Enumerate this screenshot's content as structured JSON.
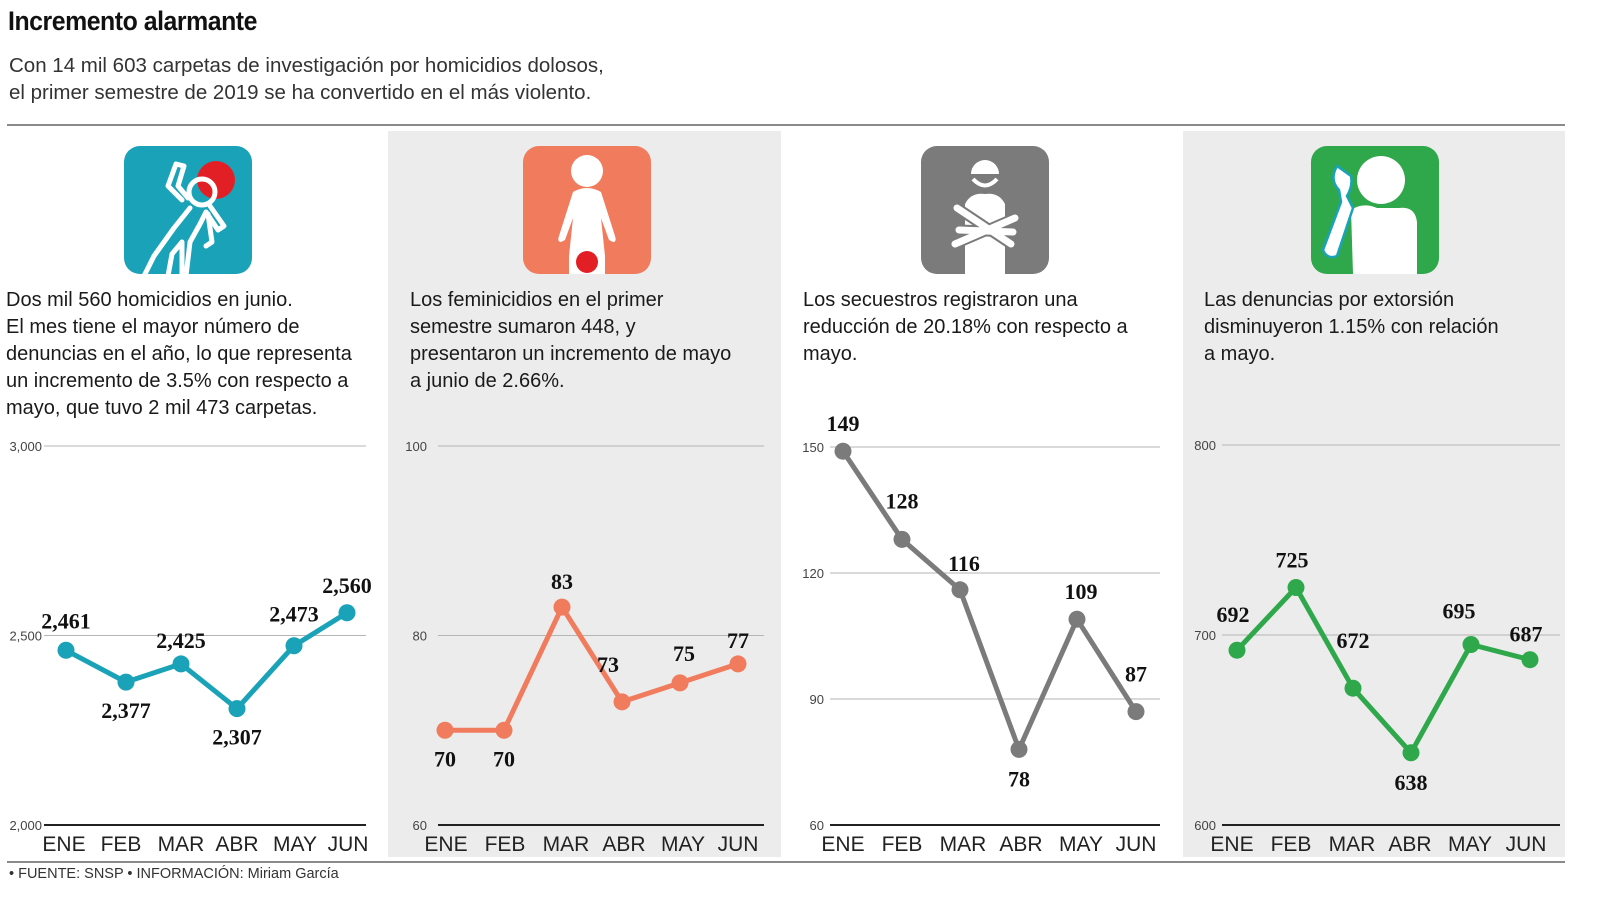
{
  "header": {
    "title": "Incremento alarmante",
    "subtitle_line1": "Con 14 mil 603 carpetas de investigación por homicidios dolosos,",
    "subtitle_line2": "el primer semestre de 2019 se ha convertido en el más violento."
  },
  "footer": "• FUENTE: SNSP • INFORMACIÓN: Miriam García",
  "panels": [
    {
      "icon": "homicide-chalk-outline-icon",
      "color": "#1aa3b8",
      "desc": [
        "Dos mil 560 homicidios en junio.",
        "El mes tiene el mayor número de",
        "denuncias en el año, lo que representa",
        "un incremento de 3.5% con respecto a",
        "mayo, que tuvo 2 mil 473 carpetas."
      ]
    },
    {
      "icon": "femicide-woman-icon",
      "color": "#f07b5d",
      "desc": [
        "Los feminicidios en el primer",
        "semestre sumaron 448, y",
        "presentaron un incremento de mayo",
        "a junio de 2.66%."
      ]
    },
    {
      "icon": "kidnapping-bound-person-icon",
      "color": "#7b7b7b",
      "desc": [
        "Los secuestros registraron una",
        "reducción de 20.18% con respecto a",
        "mayo."
      ]
    },
    {
      "icon": "extortion-phone-call-icon",
      "color": "#2ea84a",
      "desc": [
        "Las denuncias por extorsión",
        "disminuyeron 1.15% con relación",
        "a mayo."
      ]
    }
  ],
  "chart_data": [
    {
      "type": "line",
      "title": "Homicidios dolosos",
      "categories": [
        "ENE",
        "FEB",
        "MAR",
        "ABR",
        "MAY",
        "JUN"
      ],
      "values": [
        2461,
        2377,
        2425,
        2307,
        2473,
        2560
      ],
      "labels": [
        "2,461",
        "2,377",
        "2,425",
        "2,307",
        "2,473",
        "2,560"
      ],
      "ylim": [
        2000,
        3000
      ],
      "yticks": [
        2000,
        2500,
        3000
      ],
      "ytick_labels": [
        "2,000",
        "2,500",
        "3,000"
      ],
      "grid": true,
      "color": "#1aa3b8"
    },
    {
      "type": "line",
      "title": "Feminicidios",
      "categories": [
        "ENE",
        "FEB",
        "MAR",
        "ABR",
        "MAY",
        "JUN"
      ],
      "values": [
        70,
        70,
        83,
        73,
        75,
        77
      ],
      "labels": [
        "70",
        "70",
        "83",
        "73",
        "75",
        "77"
      ],
      "ylim": [
        60,
        100
      ],
      "yticks": [
        60,
        80,
        100
      ],
      "ytick_labels": [
        "60",
        "80",
        "100"
      ],
      "grid": true,
      "color": "#f07b5d"
    },
    {
      "type": "line",
      "title": "Secuestros",
      "categories": [
        "ENE",
        "FEB",
        "MAR",
        "ABR",
        "MAY",
        "JUN"
      ],
      "values": [
        149,
        128,
        116,
        78,
        109,
        87
      ],
      "labels": [
        "149",
        "128",
        "116",
        "78",
        "109",
        "87"
      ],
      "ylim": [
        60,
        150
      ],
      "yticks": [
        60,
        90,
        120,
        150
      ],
      "ytick_labels": [
        "60",
        "90",
        "120",
        "150"
      ],
      "grid": true,
      "color": "#7b7b7b"
    },
    {
      "type": "line",
      "title": "Extorsión",
      "categories": [
        "ENE",
        "FEB",
        "MAR",
        "ABR",
        "MAY",
        "JUN"
      ],
      "values": [
        692,
        725,
        672,
        638,
        695,
        687
      ],
      "labels": [
        "692",
        "725",
        "672",
        "638",
        "695",
        "687"
      ],
      "ylim": [
        600,
        800
      ],
      "yticks": [
        600,
        700,
        800
      ],
      "ytick_labels": [
        "600",
        "700",
        "800"
      ],
      "grid": true,
      "color": "#2ea84a"
    }
  ]
}
